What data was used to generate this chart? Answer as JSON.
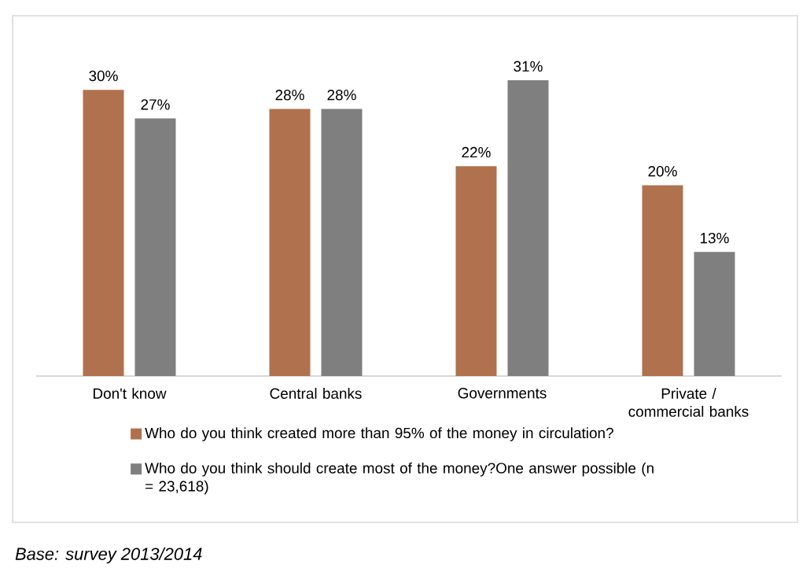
{
  "chart_data": {
    "type": "bar",
    "categories": [
      "Don't know",
      "Central banks",
      "Governments",
      "Private / commercial banks"
    ],
    "series": [
      {
        "name": "Who do you think created more than 95% of the money in circulation?",
        "color": "#b0714f",
        "values": [
          30,
          28,
          22,
          20
        ],
        "value_labels": [
          "30%",
          "28%",
          "22%",
          "20%"
        ]
      },
      {
        "name": "Who do you think should create most of the money?One answer possible (n = 23,618)",
        "color": "#7f7f7f",
        "values": [
          27,
          28,
          31,
          13
        ],
        "value_labels": [
          "27%",
          "28%",
          "31%",
          "13%"
        ]
      }
    ],
    "legend": "bottom",
    "annotations": [
      "Base: survey 2013/2014"
    ]
  }
}
